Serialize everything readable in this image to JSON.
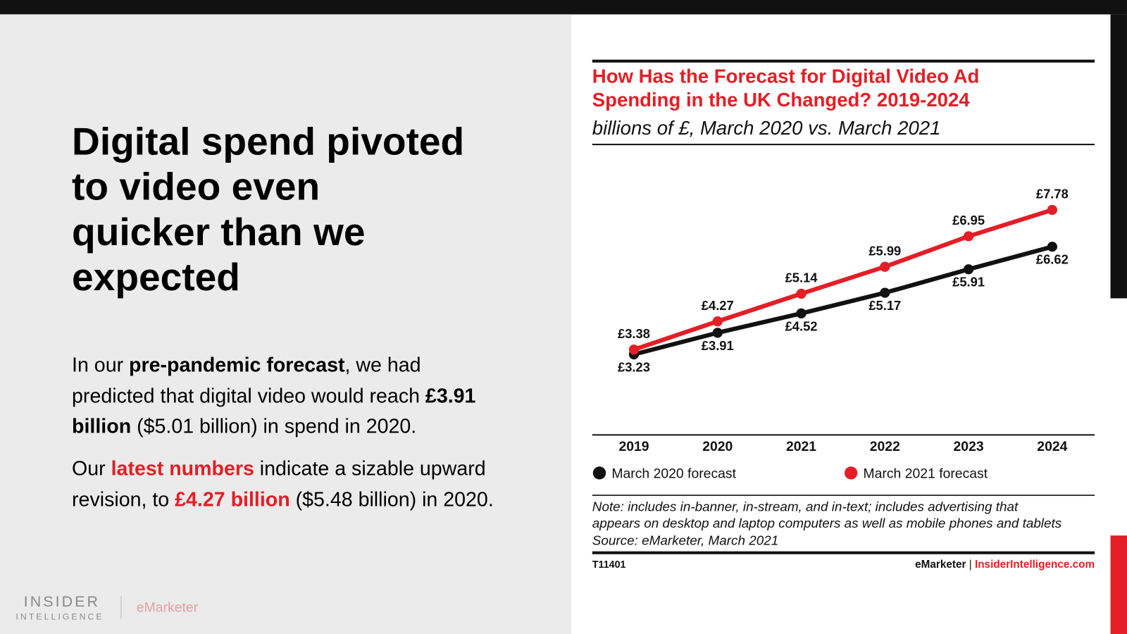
{
  "slide": {
    "headline": [
      "Digital spend pivoted",
      "to video even",
      "quicker than we",
      "expected"
    ],
    "paragraphs": [
      [
        {
          "text": "In our "
        },
        {
          "text": "pre-pandemic forecast",
          "bold": true
        },
        {
          "text": ", we had predicted that digital video would reach "
        },
        {
          "text": "£3.91 billion",
          "bold": true
        },
        {
          "text": " ($5.01 billion) in spend in 2020."
        }
      ],
      [
        {
          "text": "Our "
        },
        {
          "text": "latest numbers",
          "bold": true,
          "color": "#e41e26"
        },
        {
          "text": " indicate a sizable upward revision, to "
        },
        {
          "text": "£4.27 billion",
          "bold": true,
          "color": "#e41e26"
        },
        {
          "text": " ($5.48 billion) in 2020."
        }
      ]
    ],
    "logo": {
      "insider": "INSIDER",
      "intelligence": "INTELLIGENCE",
      "emarketer": "eMarketer"
    }
  },
  "chart_data": {
    "type": "line",
    "title": "How Has the Forecast for Digital Video Ad Spending in the UK Changed? 2019-2024",
    "subtitle": "billions of £, March 2020 vs. March 2021",
    "categories": [
      "2019",
      "2020",
      "2021",
      "2022",
      "2023",
      "2024"
    ],
    "series": [
      {
        "name": "March 2020 forecast",
        "color": "#111111",
        "values": [
          3.23,
          3.91,
          4.52,
          5.17,
          5.91,
          6.62
        ],
        "value_labels": [
          "£3.23",
          "£3.91",
          "£4.52",
          "£5.17",
          "£5.91",
          "£6.62"
        ]
      },
      {
        "name": "March 2021 forecast",
        "color": "#e41e26",
        "values": [
          3.38,
          4.27,
          5.14,
          5.99,
          6.95,
          7.78
        ],
        "value_labels": [
          "£3.38",
          "£4.27",
          "£5.14",
          "£5.99",
          "£6.95",
          "£7.78"
        ]
      }
    ],
    "legend": "bottom",
    "note": [
      "Note: includes in-banner, in-stream, and in-text; includes advertising that",
      "appears on desktop and laptop computers as well as mobile phones and tablets"
    ],
    "source": "Source: eMarketer, March 2021",
    "id": "T11401",
    "credit": [
      "eMarketer",
      "|",
      "InsiderIntelligence.com"
    ]
  }
}
